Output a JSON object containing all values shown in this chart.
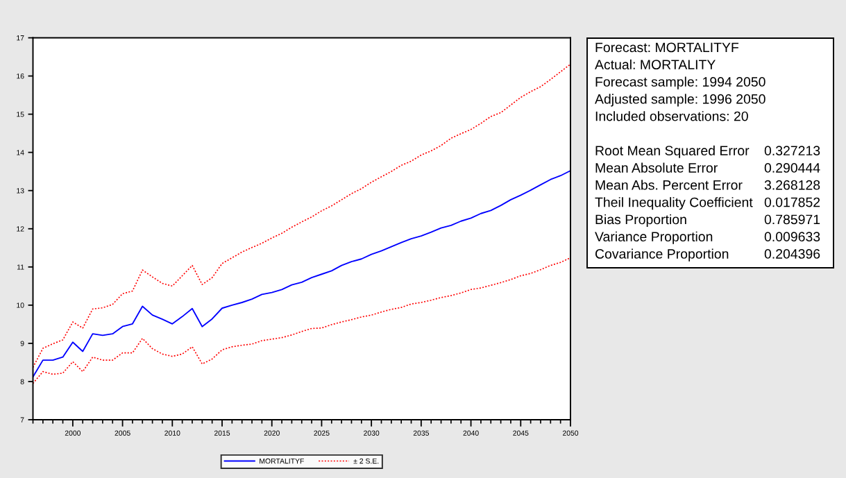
{
  "chart_data": [
    {
      "type": "line",
      "x": [
        1996,
        1997,
        1998,
        1999,
        2000,
        2001,
        2002,
        2003,
        2004,
        2005,
        2006,
        2007,
        2008,
        2009,
        2010,
        2011,
        2012,
        2013,
        2014,
        2015,
        2016,
        2017,
        2018,
        2019,
        2020,
        2021,
        2022,
        2023,
        2024,
        2025,
        2026,
        2027,
        2028,
        2029,
        2030,
        2031,
        2032,
        2033,
        2034,
        2035,
        2036,
        2037,
        2038,
        2039,
        2040,
        2041,
        2042,
        2043,
        2044,
        2045,
        2046,
        2047,
        2048,
        2049,
        2050
      ],
      "series": [
        {
          "name": "MORTALITYF",
          "color": "#0000ff",
          "line_style": "solid",
          "values": [
            8.12,
            8.56,
            8.56,
            8.64,
            9.03,
            8.79,
            9.25,
            9.21,
            9.25,
            9.44,
            9.51,
            9.97,
            9.74,
            9.63,
            9.51,
            9.7,
            9.91,
            9.44,
            9.64,
            9.92,
            10.0,
            10.07,
            10.16,
            10.28,
            10.33,
            10.41,
            10.53,
            10.6,
            10.72,
            10.81,
            10.9,
            11.04,
            11.14,
            11.21,
            11.33,
            11.42,
            11.53,
            11.64,
            11.74,
            11.81,
            11.91,
            12.02,
            12.09,
            12.2,
            12.28,
            12.4,
            12.48,
            12.61,
            12.76,
            12.88,
            13.01,
            13.15,
            13.29,
            13.39,
            13.52
          ]
        },
        {
          "name": "± 2 S.E.",
          "color": "#ff0000",
          "line_style": "dotted",
          "values": [
            8.37,
            8.87,
            8.99,
            9.09,
            9.56,
            9.4,
            9.9,
            9.93,
            10.02,
            10.3,
            10.37,
            10.92,
            10.74,
            10.57,
            10.5,
            10.77,
            11.04,
            10.54,
            10.72,
            11.09,
            11.24,
            11.39,
            11.51,
            11.62,
            11.76,
            11.88,
            12.04,
            12.18,
            12.31,
            12.47,
            12.6,
            12.76,
            12.92,
            13.05,
            13.22,
            13.36,
            13.5,
            13.66,
            13.77,
            13.93,
            14.04,
            14.18,
            14.37,
            14.49,
            14.6,
            14.76,
            14.94,
            15.04,
            15.24,
            15.44,
            15.59,
            15.72,
            15.91,
            16.11,
            16.31
          ]
        },
        {
          "color": "#ff0000",
          "line_style": "dotted",
          "values": [
            7.95,
            8.26,
            8.19,
            8.22,
            8.52,
            8.26,
            8.64,
            8.56,
            8.56,
            8.75,
            8.75,
            9.13,
            8.86,
            8.72,
            8.66,
            8.72,
            8.91,
            8.46,
            8.59,
            8.83,
            8.91,
            8.95,
            8.98,
            9.07,
            9.11,
            9.15,
            9.22,
            9.31,
            9.39,
            9.4,
            9.49,
            9.56,
            9.62,
            9.69,
            9.74,
            9.82,
            9.89,
            9.94,
            10.03,
            10.07,
            10.13,
            10.2,
            10.25,
            10.32,
            10.41,
            10.45,
            10.52,
            10.59,
            10.67,
            10.77,
            10.83,
            10.93,
            11.04,
            11.12,
            11.24
          ]
        }
      ],
      "xlim": [
        1996,
        2050
      ],
      "ylim": [
        7,
        17
      ],
      "xticks": [
        {
          "value": 1996,
          "label": null
        },
        {
          "value": 1997,
          "label": null
        },
        {
          "value": 1998,
          "label": null
        },
        {
          "value": 1999,
          "label": null
        },
        2000,
        {
          "value": 2001,
          "label": null
        },
        {
          "value": 2002,
          "label": null
        },
        {
          "value": 2003,
          "label": null
        },
        {
          "value": 2004,
          "label": null
        },
        2005,
        {
          "value": 2006,
          "label": null
        },
        {
          "value": 2007,
          "label": null
        },
        {
          "value": 2008,
          "label": null
        },
        {
          "value": 2009,
          "label": null
        },
        2010,
        {
          "value": 2011,
          "label": null
        },
        {
          "value": 2012,
          "label": null
        },
        {
          "value": 2013,
          "label": null
        },
        {
          "value": 2014,
          "label": null
        },
        2015,
        {
          "value": 2016,
          "label": null
        },
        {
          "value": 2017,
          "label": null
        },
        {
          "value": 2018,
          "label": null
        },
        {
          "value": 2019,
          "label": null
        },
        2020,
        {
          "value": 2021,
          "label": null
        },
        {
          "value": 2022,
          "label": null
        },
        {
          "value": 2023,
          "label": null
        },
        {
          "value": 2024,
          "label": null
        },
        2025,
        {
          "value": 2026,
          "label": null
        },
        {
          "value": 2027,
          "label": null
        },
        {
          "value": 2028,
          "label": null
        },
        {
          "value": 2029,
          "label": null
        },
        2030,
        {
          "value": 2031,
          "label": null
        },
        {
          "value": 2032,
          "label": null
        },
        {
          "value": 2033,
          "label": null
        },
        {
          "value": 2034,
          "label": null
        },
        2035,
        {
          "value": 2036,
          "label": null
        },
        {
          "value": 2037,
          "label": null
        },
        {
          "value": 2038,
          "label": null
        },
        {
          "value": 2039,
          "label": null
        },
        2040,
        {
          "value": 2041,
          "label": null
        },
        {
          "value": 2042,
          "label": null
        },
        {
          "value": 2043,
          "label": null
        },
        {
          "value": 2044,
          "label": null
        },
        2045,
        {
          "value": 2046,
          "label": null
        },
        {
          "value": 2047,
          "label": null
        },
        {
          "value": 2048,
          "label": null
        },
        {
          "value": 2049,
          "label": null
        },
        2050
      ],
      "yticks": [
        7,
        8,
        9,
        10,
        11,
        12,
        13,
        14,
        15,
        16,
        17
      ],
      "legend": "bottom"
    },
    {
      "type": "other",
      "annotations": [
        "Forecast: MORTALITYF",
        "Actual: MORTALITY",
        "Forecast sample: 1994 2050",
        "Adjusted sample: 1996 2050",
        "Included observations: 20"
      ],
      "categories": [
        "Root Mean Squared Error",
        "Mean Absolute Error",
        "Mean Abs. Percent Error",
        "Theil Inequality Coefficient",
        "Bias Proportion",
        "Variance Proportion",
        "Covariance Proportion"
      ],
      "values": [
        0.327213,
        0.290444,
        3.268128,
        0.017852,
        0.785971,
        0.009633,
        0.204396
      ],
      "data_labels": true
    }
  ]
}
